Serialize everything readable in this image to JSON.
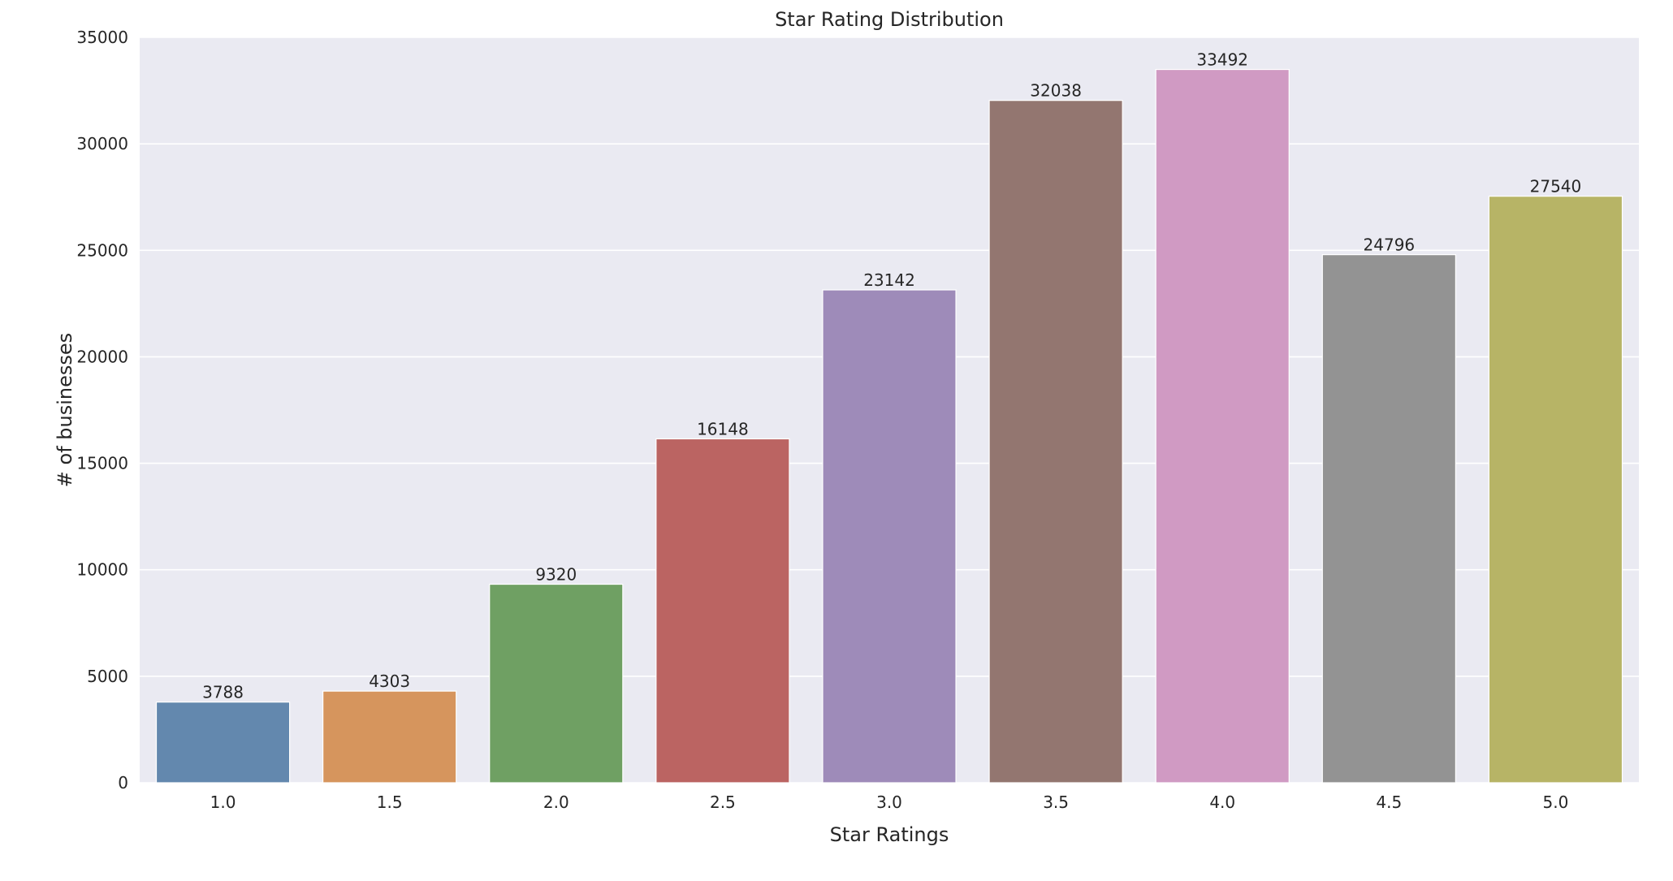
{
  "chart_data": {
    "type": "bar",
    "title": "Star Rating Distribution",
    "xlabel": "Star Ratings",
    "ylabel": "# of businesses",
    "categories": [
      "1.0",
      "1.5",
      "2.0",
      "2.5",
      "3.0",
      "3.5",
      "4.0",
      "4.5",
      "5.0"
    ],
    "values": [
      3788,
      4303,
      9320,
      16148,
      23142,
      32038,
      33492,
      24796,
      27540
    ],
    "data_labels": [
      "3788",
      "4303",
      "9320",
      "16148",
      "23142",
      "32038",
      "33492",
      "24796",
      "27540"
    ],
    "ylim": [
      0,
      35000
    ],
    "yticks": [
      0,
      5000,
      10000,
      15000,
      20000,
      25000,
      30000,
      35000
    ],
    "ytick_labels": [
      "0",
      "5000",
      "10000",
      "15000",
      "20000",
      "25000",
      "30000",
      "35000"
    ],
    "grid": true,
    "legend": "none",
    "colors": [
      "#6388ae",
      "#d6955d",
      "#6fa063",
      "#bb6462",
      "#9e8bb9",
      "#937670",
      "#d09ac3",
      "#939393",
      "#b7b466"
    ],
    "background": "#eaeaf2"
  }
}
